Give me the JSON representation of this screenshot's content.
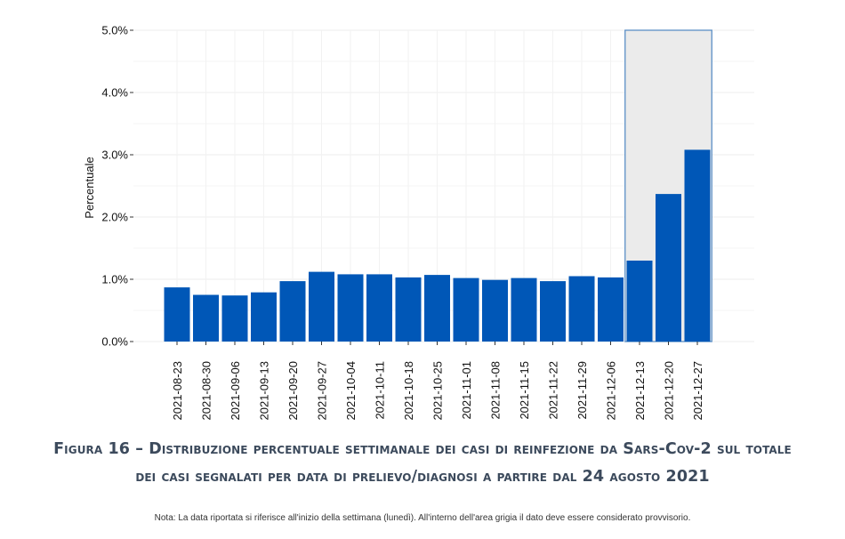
{
  "chart_data": {
    "type": "bar",
    "ylabel": "Percentuale",
    "xlabel": "",
    "ylim": [
      0,
      5
    ],
    "yticks": [
      "0.0%",
      "1.0%",
      "2.0%",
      "3.0%",
      "4.0%",
      "5.0%"
    ],
    "categories": [
      "2021-08-23",
      "2021-08-30",
      "2021-09-06",
      "2021-09-13",
      "2021-09-20",
      "2021-09-27",
      "2021-10-04",
      "2021-10-11",
      "2021-10-18",
      "2021-10-25",
      "2021-11-01",
      "2021-11-08",
      "2021-11-15",
      "2021-11-22",
      "2021-11-29",
      "2021-12-06",
      "2021-12-13",
      "2021-12-20",
      "2021-12-27"
    ],
    "values": [
      0.87,
      0.75,
      0.74,
      0.79,
      0.97,
      1.12,
      1.08,
      1.08,
      1.03,
      1.07,
      1.02,
      0.99,
      1.02,
      0.97,
      1.05,
      1.03,
      1.3,
      2.37,
      3.08
    ],
    "highlight": {
      "from_category": "2021-12-13",
      "to_category": "2021-12-27",
      "meaning": "provisional data"
    },
    "grid": true,
    "colors": {
      "bar": "#0057b7",
      "highlight_fill": "#ebebeb",
      "highlight_border": "#5b8fc6",
      "grid": "#ececec"
    }
  },
  "caption": "Figura 16 – Distribuzione percentuale settimanale dei casi di reinfezione da Sars-Cov-2 sul totale dei casi segnalati per data di prelievo/diagnosi a partire dal 24 agosto 2021",
  "note": "Nota: La data riportata si riferisce all'inizio della settimana (lunedì). All'interno dell'area grigia il dato deve essere considerato provvisorio."
}
